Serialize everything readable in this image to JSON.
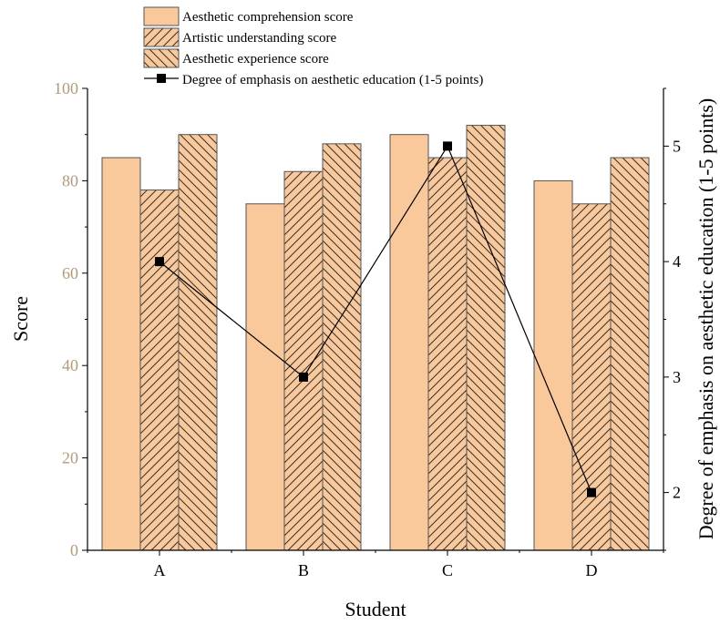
{
  "chart_data": {
    "type": "bar",
    "categories": [
      "A",
      "B",
      "C",
      "D"
    ],
    "series": [
      {
        "name": "Aesthetic comprehension score",
        "values": [
          85,
          75,
          90,
          80
        ],
        "pattern": "solid",
        "axis": "left"
      },
      {
        "name": "Artistic understanding score",
        "values": [
          78,
          82,
          85,
          75
        ],
        "pattern": "forward-hatch",
        "axis": "left"
      },
      {
        "name": "Aesthetic experience score",
        "values": [
          90,
          88,
          92,
          85
        ],
        "pattern": "back-hatch",
        "axis": "left"
      }
    ],
    "line_series": {
      "name": "Degree of emphasis on aesthetic education (1-5 points)",
      "type": "line",
      "marker": "square",
      "values": [
        4,
        3,
        5,
        2
      ],
      "axis": "right"
    },
    "xlabel": "Student",
    "ylabel": "Score",
    "y2label": "Degree of emphasis on aesthetic education (1-5 points)",
    "ylim": [
      0,
      100
    ],
    "yticks": [
      0,
      20,
      40,
      60,
      80,
      100
    ],
    "y2lim": [
      1.5,
      5.5
    ],
    "y2ticks": [
      2,
      3,
      4,
      5
    ],
    "legend_position": "top-left",
    "grid": false,
    "colors": {
      "bar_fill": "#f9c89b",
      "bar_stroke": "#555555",
      "hatch": "#333333",
      "line": "#000000",
      "left_tick_labels": "#b59a7a"
    }
  }
}
